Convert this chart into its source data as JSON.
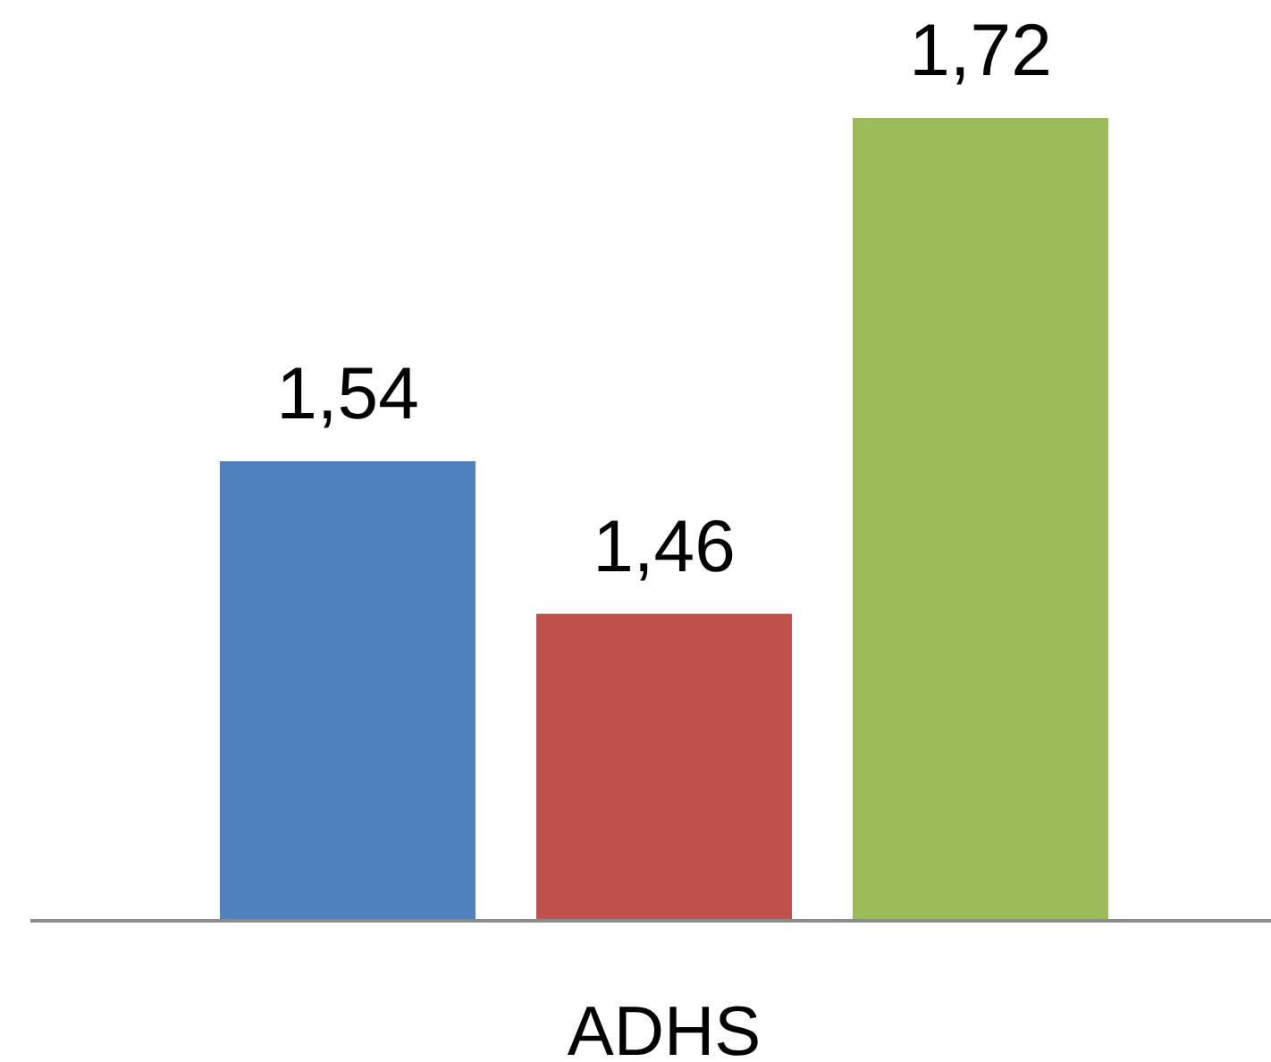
{
  "chart_data": {
    "type": "bar",
    "categories": [
      null,
      "ADHS",
      null
    ],
    "values": [
      1.54,
      1.46,
      1.72
    ],
    "colors": [
      "#4f81bd",
      "#c0504d",
      "#9bbb59"
    ],
    "value_labels": [
      "1,54",
      "1,46",
      "1,72"
    ],
    "ylim": [
      1.3,
      1.72
    ]
  }
}
